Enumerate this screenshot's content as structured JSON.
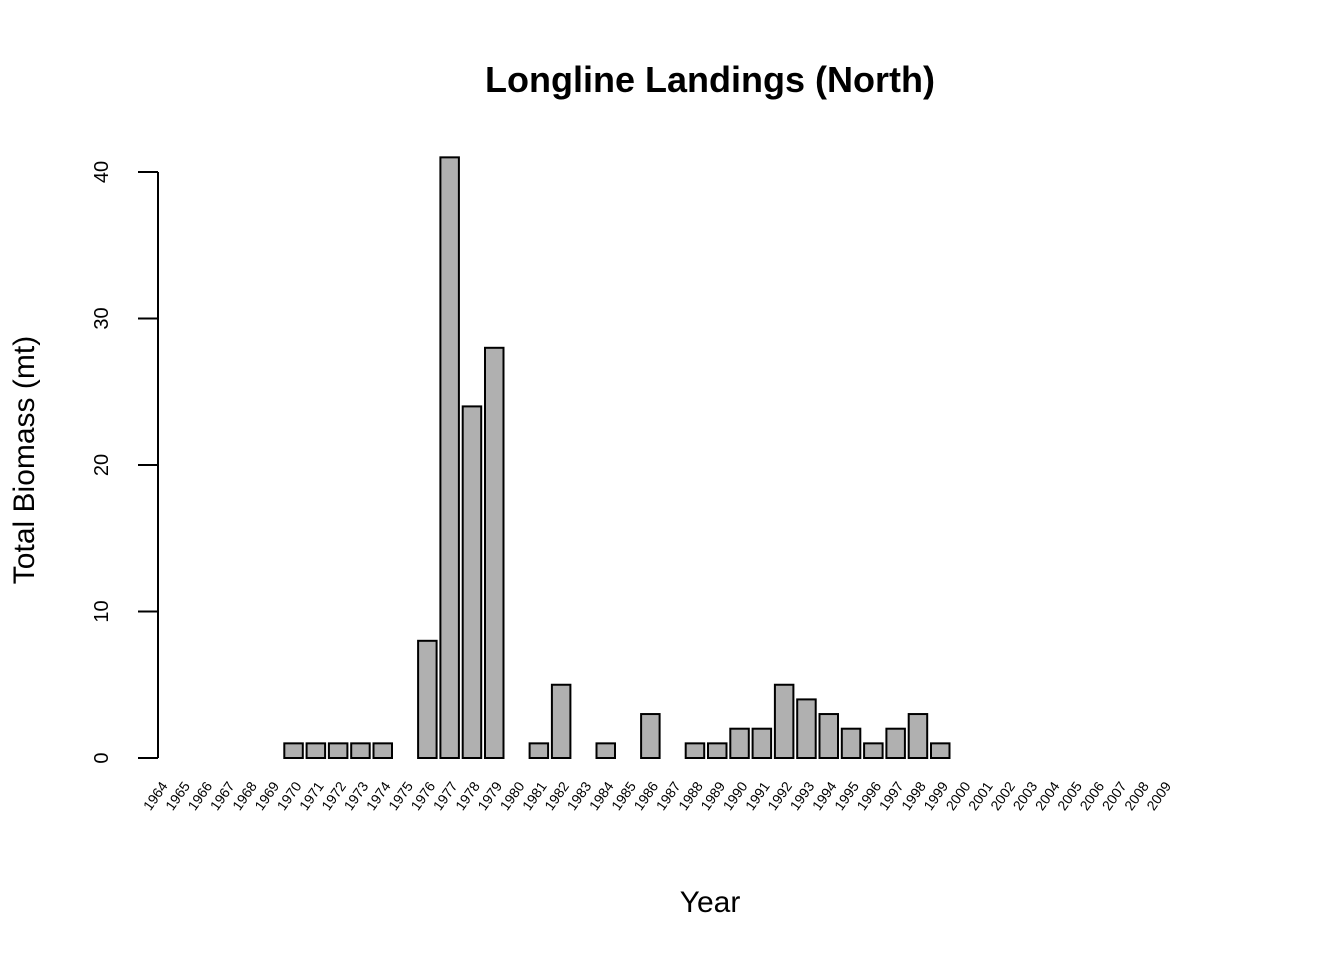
{
  "chart_data": {
    "type": "bar",
    "title": "Longline Landings (North)",
    "xlabel": "Year",
    "ylabel": "Total Biomass (mt)",
    "ylim": [
      0,
      40
    ],
    "yticks": [
      "0",
      "10",
      "20",
      "30",
      "40"
    ],
    "bar_color": "#b0b0b0",
    "categories": [
      "1964",
      "1965",
      "1966",
      "1967",
      "1968",
      "1969",
      "1970",
      "1971",
      "1972",
      "1973",
      "1974",
      "1975",
      "1976",
      "1977",
      "1978",
      "1979",
      "1980",
      "1981",
      "1982",
      "1983",
      "1984",
      "1985",
      "1986",
      "1987",
      "1988",
      "1989",
      "1990",
      "1991",
      "1992",
      "1993",
      "1994",
      "1995",
      "1996",
      "1997",
      "1998",
      "1999",
      "2000",
      "2001",
      "2002",
      "2003",
      "2004",
      "2005",
      "2006",
      "2007",
      "2008",
      "2009"
    ],
    "values": [
      0,
      0,
      0,
      0,
      0,
      0,
      1,
      1,
      1,
      1,
      1,
      0,
      8,
      41,
      24,
      28,
      0,
      1,
      5,
      0,
      1,
      0,
      3,
      0,
      1,
      1,
      2,
      2,
      5,
      4,
      3,
      2,
      1,
      2,
      3,
      1,
      0,
      0,
      0,
      0,
      0,
      0,
      0,
      0,
      0,
      0
    ]
  }
}
